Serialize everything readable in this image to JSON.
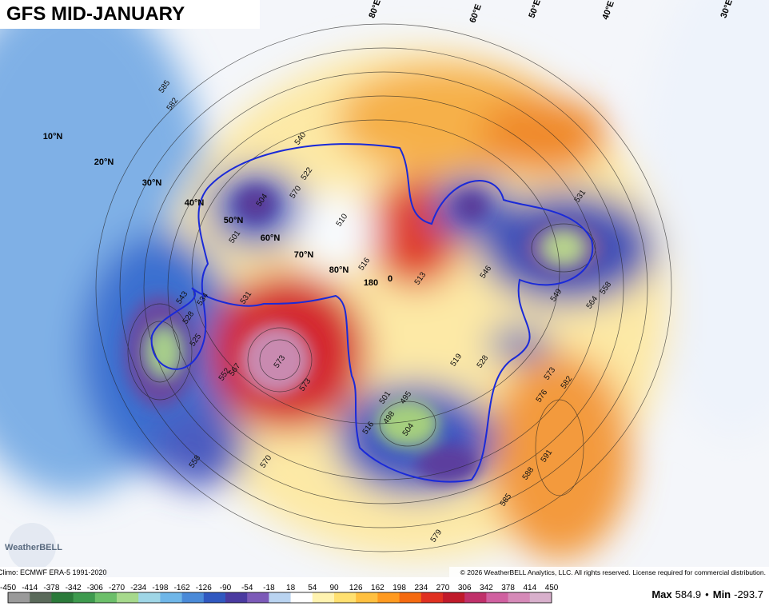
{
  "title": "GFS MID-JANUARY",
  "latitude_labels": [
    "10°N",
    "20°N",
    "30°N",
    "40°N",
    "50°N",
    "60°N",
    "70°N",
    "80°N",
    "180",
    "0"
  ],
  "longitude_labels": [
    "80°E",
    "60°E",
    "50°E",
    "40°E",
    "30°E"
  ],
  "contour_labels": [
    "585",
    "582",
    "540",
    "522",
    "570",
    "504",
    "501",
    "510",
    "513",
    "516",
    "543",
    "534",
    "531",
    "528",
    "525",
    "567",
    "573",
    "573",
    "552",
    "558",
    "570",
    "495",
    "498",
    "504",
    "516",
    "501",
    "579",
    "585",
    "588",
    "591",
    "582",
    "576",
    "573",
    "549",
    "564",
    "558",
    "531",
    "546",
    "528",
    "519"
  ],
  "logo": "WeatherBELL",
  "climo": "Climo: ECMWF ERA-5 1991-2020",
  "copyright": "© 2026 WeatherBELL Analytics, LLC. All rights reserved. License required for commercial distribution.",
  "colorbar": {
    "ticks": [
      "-450",
      "-414",
      "-378",
      "-342",
      "-306",
      "-270",
      "-234",
      "-198",
      "-162",
      "-126",
      "-90",
      "-54",
      "-18",
      "18",
      "54",
      "90",
      "126",
      "162",
      "198",
      "234",
      "270",
      "306",
      "342",
      "378",
      "414",
      "450"
    ]
  },
  "stats": {
    "max_label": "Max",
    "max": "584.9",
    "separator": "•",
    "min_label": "Min",
    "min": "-293.7"
  }
}
